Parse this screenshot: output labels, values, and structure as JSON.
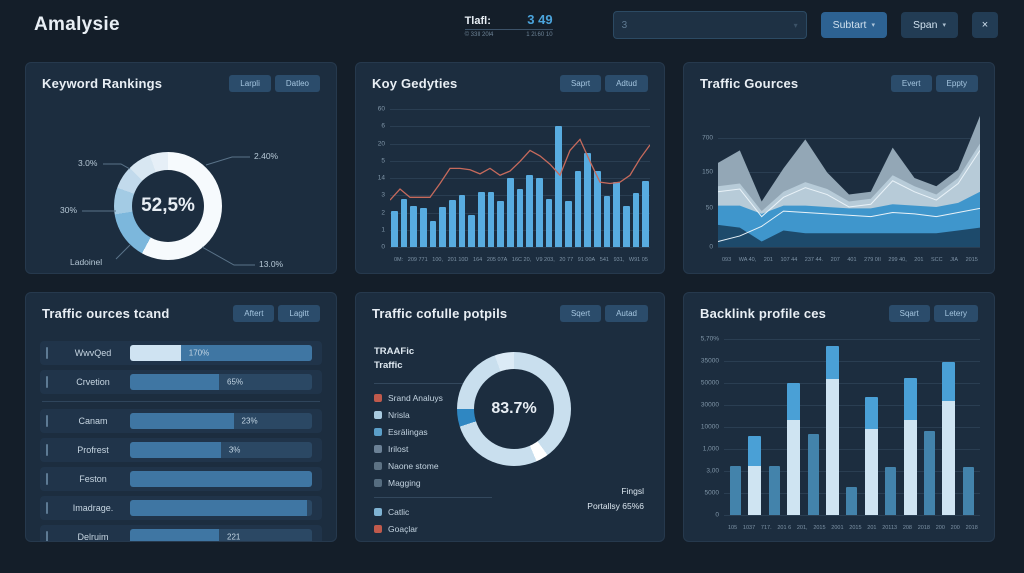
{
  "header": {
    "title": "Amalysie",
    "stat": {
      "label": "Tlafl:",
      "value": "3 49",
      "sub_left": "© 33Il 20l4",
      "sub_right": "1 2l.60 10"
    },
    "search": {
      "value": "3"
    },
    "actions": [
      {
        "label": "Subtart"
      },
      {
        "label": "Span"
      }
    ],
    "close_label": "×"
  },
  "panels": {
    "keyword_rankings": {
      "title": "Keyword Rankings",
      "buttons": [
        "Larpli",
        "Datleo"
      ],
      "chart_data": {
        "type": "pie",
        "center_label": "52,5%",
        "segments": [
          {
            "label": "2.40%",
            "value": 58,
            "color": "#f6fafd"
          },
          {
            "label": "13.0%",
            "value": 14.5,
            "color": "#7cb7dc"
          },
          {
            "label": "Ladoinel",
            "value": 8,
            "color": "#a3cbe4"
          },
          {
            "label": "30%",
            "value": 7,
            "color": "#c2daec"
          },
          {
            "label": "3.0%",
            "value": 7,
            "color": "#d8e7f2"
          },
          {
            "label": "",
            "value": 5.5,
            "color": "#e6eff7"
          }
        ],
        "callouts": {
          "top_right": "2.40%",
          "bottom_right": "13.0%",
          "top_left": "3.0%",
          "mid_left": "30%",
          "bottom_left": "Ladoinel"
        }
      }
    },
    "key_gedyties": {
      "title": "Koy Gedyties",
      "buttons": [
        "Saprt",
        "Adtud"
      ],
      "chart_data": {
        "type": "bar",
        "y_ticks": [
          "60",
          "6",
          "20",
          "5",
          "14",
          "3",
          "2",
          "1",
          "0"
        ],
        "x_ticks": [
          "0M:",
          "209 771",
          "100,",
          "201 10D",
          "164",
          "205 07A",
          "16C 20,",
          "V9 203,",
          "20 77",
          "91 00A",
          "541",
          "931,",
          "W91 05"
        ],
        "bar_color": "#58ace0",
        "line_color": "#c66a5c",
        "bars": [
          26,
          35,
          30,
          28,
          19,
          29,
          34,
          38,
          23,
          40,
          40,
          33,
          50,
          42,
          52,
          50,
          35,
          88,
          33,
          55,
          68,
          55,
          37,
          47,
          30,
          39,
          48
        ],
        "line": [
          34,
          42,
          36,
          36,
          36,
          46,
          57,
          57,
          56,
          53,
          57,
          52,
          55,
          62,
          70,
          66,
          60,
          52,
          70,
          78,
          62,
          47,
          46,
          47,
          52,
          64,
          74
        ]
      }
    },
    "traffic_gources": {
      "title": "Traffic Gources",
      "buttons": [
        "Evert",
        "Eppty"
      ],
      "chart_data": {
        "type": "area",
        "y_ticks": [
          "700",
          "150",
          "50",
          "0"
        ],
        "y_pos": [
          21,
          46,
          72,
          100
        ],
        "x_ticks": [
          "093",
          "WA 40,",
          "201",
          "107 44",
          "237 44.",
          "207",
          "401",
          "279 0II",
          "299 40,",
          "201",
          "SCC",
          "JIA",
          "2015"
        ],
        "layers": [
          {
            "name": "layer-gray",
            "color": "#93a7b6",
            "values": [
              61,
              70,
              33,
              57,
              78,
              54,
              38,
              40,
              72,
              50,
              44,
              56,
              95
            ]
          },
          {
            "name": "layer-light",
            "color": "#b7cbd8",
            "values": [
              44,
              46,
              26,
              40,
              47,
              42,
              33,
              35,
              52,
              44,
              38,
              50,
              75
            ]
          },
          {
            "name": "layer-blue",
            "color": "#3f96cc",
            "values": [
              30,
              30,
              24,
              30,
              30,
              29,
              28,
              28,
              31,
              30,
              29,
              32,
              40
            ]
          },
          {
            "name": "layer-dark",
            "color": "#1d4a6b",
            "values": [
              16,
              14,
              4,
              12,
              10,
              10,
              10,
              10,
              10,
              10,
              10,
              12,
              14
            ]
          }
        ],
        "lines": [
          {
            "color": "#e9f2f8",
            "values": [
              40,
              42,
              22,
              36,
              43,
              38,
              29,
              31,
              48,
              40,
              34,
              46,
              70
            ]
          },
          {
            "color": "#e9f2f8",
            "values": [
              4,
              8,
              15,
              26,
              25,
              24,
              23,
              22,
              25,
              24,
              22,
              25,
              28
            ]
          }
        ]
      }
    },
    "traffic_ources_tcand": {
      "title": "Traffic ources tcand",
      "buttons": [
        "Aftert",
        "Lagitt"
      ],
      "chart_data": {
        "type": "bar",
        "colors": {
          "pale": "#cfe3f2",
          "mid": "#3f76a3"
        },
        "rows": [
          {
            "label": "WwvQed",
            "segments": [
              [
                "pale",
                28
              ],
              [
                "mid",
                72
              ]
            ],
            "value": "170%",
            "value_pos": 29
          },
          {
            "label": "Crvetion",
            "segments": [
              [
                "mid",
                49
              ]
            ],
            "value": "65%",
            "value_pos": 50,
            "divider": true
          },
          {
            "label": "Canam",
            "segments": [
              [
                "mid",
                57
              ]
            ],
            "value": "23%",
            "value_pos": 58
          },
          {
            "label": "Profrest",
            "segments": [
              [
                "mid",
                50
              ]
            ],
            "value": "3%",
            "value_pos": 51
          },
          {
            "label": "Feston",
            "segments": [
              [
                "mid",
                100
              ]
            ],
            "value": "",
            "value_pos": 0
          },
          {
            "label": "Imadrage.",
            "segments": [
              [
                "mid",
                97
              ]
            ],
            "value": "",
            "value_pos": 0
          },
          {
            "label": "Delruim",
            "segments": [
              [
                "mid",
                49
              ]
            ],
            "value": "221",
            "value_pos": 50
          }
        ]
      }
    },
    "traffic_cofulle_potpils": {
      "title": "Traffic cofulle potpils",
      "buttons": [
        "Sqert",
        "Autad"
      ],
      "legend_title_1": "TRAAFic",
      "legend_title_2": "Traffic",
      "caption_1": "Fingsl",
      "caption_2": "Portallsy 65%6",
      "chart_data": {
        "type": "pie",
        "center_label": "83.7%",
        "segments": [
          {
            "label": "",
            "value": 40,
            "color": "#c9dfee"
          },
          {
            "label": "",
            "value": 3.5,
            "color": "#ffffff"
          },
          {
            "label": "",
            "value": 26.5,
            "color": "#c9dfee"
          },
          {
            "label": "",
            "value": 5,
            "color": "#2f87c2"
          },
          {
            "label": "",
            "value": 19.5,
            "color": "#c9dfee"
          },
          {
            "label": "",
            "value": 5.5,
            "color": "#dcebf6"
          }
        ],
        "legend": {
          "groups": [
            [
              {
                "label": "Srand Analuys",
                "color": "#c05a4c"
              },
              {
                "label": "Nrisla",
                "color": "#a9cbe0"
              },
              {
                "label": "Esrälingas",
                "color": "#5b9fc9"
              },
              {
                "label": "Irilost",
                "color": "#6b8196"
              },
              {
                "label": "Naone stome",
                "color": "#5d7284"
              },
              {
                "label": "Magging",
                "color": "#566d80"
              }
            ],
            [
              {
                "label": "Catlic",
                "color": "#7fb3d3"
              },
              {
                "label": "Goaçlar",
                "color": "#c05a4c"
              }
            ]
          ]
        }
      }
    },
    "backlink_profile_ces": {
      "title": "Backlink profile ces",
      "buttons": [
        "Sqart",
        "Letery"
      ],
      "chart_data": {
        "type": "bar",
        "y_ticks": [
          "5,70%",
          "35000",
          "50000",
          "30000",
          "10000",
          "1,000",
          "3,00",
          "5000",
          "0"
        ],
        "x_ticks": [
          "105",
          "1037",
          "717.",
          "201 6",
          "201,",
          "2015",
          "2001",
          "2015",
          "201",
          "20113",
          "208",
          "2018",
          "200",
          "200",
          "2018"
        ],
        "bars": [
          {
            "solid": 28
          },
          {
            "pale": 28,
            "blue": 17
          },
          {
            "solid": 28
          },
          {
            "pale": 54,
            "blue": 21
          },
          {
            "solid": 46
          },
          {
            "pale": 77,
            "blue": 19
          },
          {
            "solid": 16
          },
          {
            "pale": 49,
            "blue": 18
          },
          {
            "solid": 27
          },
          {
            "pale": 54,
            "blue": 24
          },
          {
            "solid": 48
          },
          {
            "pale": 65,
            "blue": 22
          },
          {
            "solid": 27
          }
        ]
      }
    }
  }
}
